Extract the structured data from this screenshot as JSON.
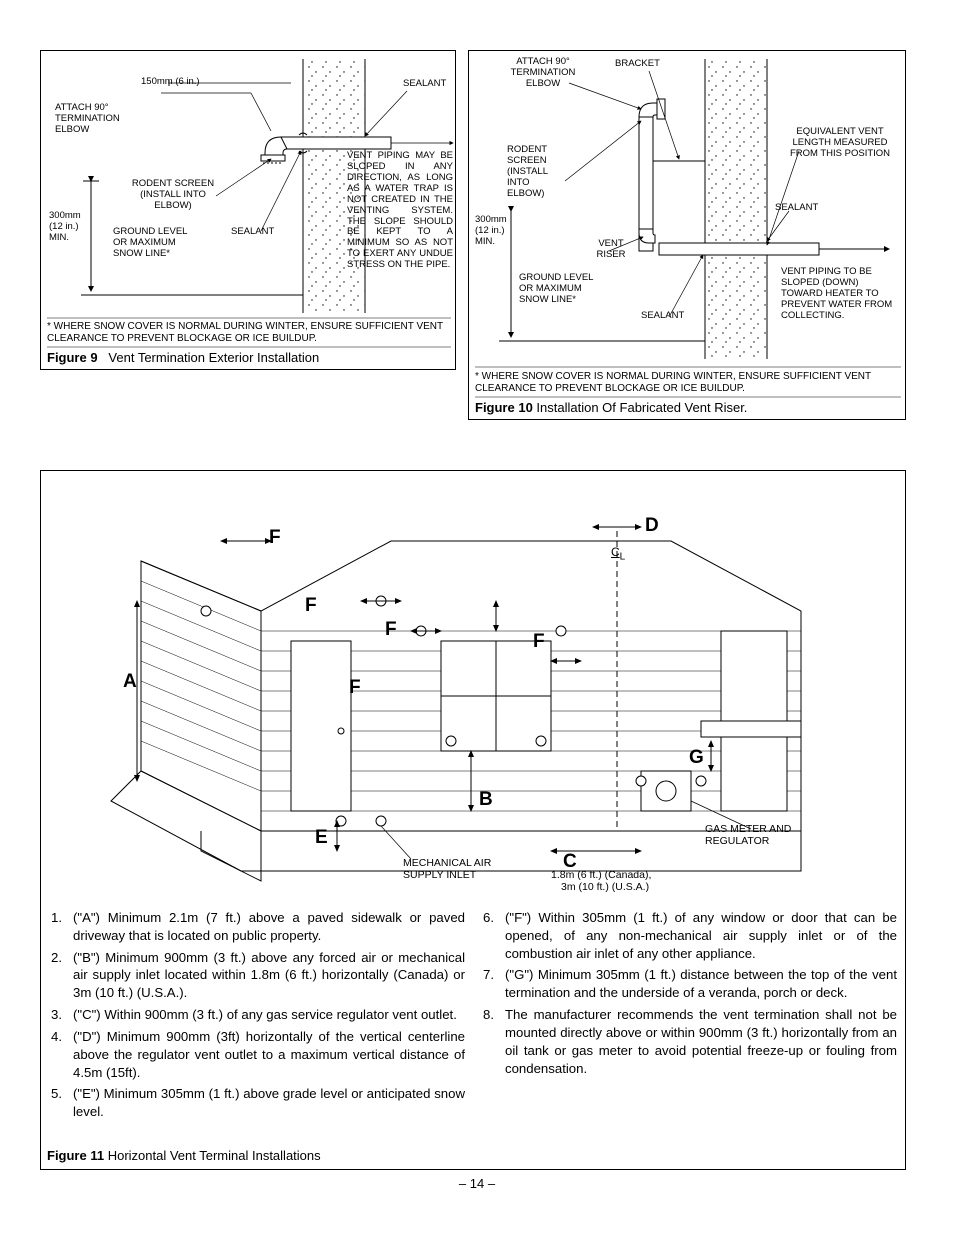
{
  "page_number": "– 14 –",
  "figure9": {
    "caption_bold": "Figure 9",
    "caption_text": "Vent Termination Exterior Installation",
    "snow_note": "* WHERE SNOW COVER IS NORMAL DURING WINTER, ENSURE SUFFICIENT VENT CLEARANCE TO PREVENT BLOCKAGE OR ICE BUILDUP.",
    "labels": {
      "l150mm": "150mm (6 in.)",
      "attach_elbow": "ATTACH 90° TERMINATION ELBOW",
      "rodent": "RODENT SCREEN (INSTALL INTO ELBOW)",
      "l300mm": "300mm (12 in.) MIN.",
      "ground": "GROUND LEVEL OR MAXIMUM SNOW LINE*",
      "sealant_left": "SEALANT",
      "sealant_top": "SEALANT",
      "vent_pipe": "VENT PIPING MAY BE SLOPED IN ANY DIRECTION, AS LONG AS A WATER TRAP IS NOT CREATED IN THE VENTING SYS­TEM. THE SLOPE SHOULD BE KEPT TO A MINIMUM SO AS NOT TO EXERT ANY UNDUE STRESS ON THE PIPE."
    }
  },
  "figure10": {
    "caption_bold": "Figure 10",
    "caption_text": "Installation Of Fabricated Vent Riser.",
    "snow_note": "* WHERE SNOW COVER IS NORMAL DURING WINTER, ENSURE SUFFICIENT VENT CLEARANCE TO PREVENT BLOCKAGE OR ICE BUILDUP.",
    "labels": {
      "attach_elbow": "ATTACH 90° TERMINATION ELBOW",
      "bracket": "BRACKET",
      "rodent": "RODENT SCREEN (INSTALL INTO ELBOW)",
      "equiv": "EQUIVALENT VENT LENGTH MEASURED FROM THIS POSITION",
      "sealant1": "SEALANT",
      "sealant2": "SEALANT",
      "l300mm": "300mm (12 in.) MIN.",
      "vent_riser": "VENT RISER",
      "ground": "GROUND LEVEL OR MAXIMUM SNOW LINE*",
      "slope": "VENT PIPING TO BE SLOPED (DOWN) TOWARD HEATER TO PREVENT WATER FROM COLLECTING."
    }
  },
  "figure11": {
    "caption_bold": "Figure 11",
    "caption_text": "Horizontal Vent Terminal Installations",
    "letters": {
      "A": "A",
      "B": "B",
      "C": "C",
      "D": "D",
      "E": "E",
      "F": "F",
      "G": "G",
      "CL": "C"
    },
    "labels": {
      "mech_air": "MECHANICAL AIR SUPPLY INLET",
      "gas_meter": "GAS METER AND REGULATOR",
      "dist_canada": "1.8m (6 ft.) (Canada),",
      "dist_usa": "3m (10 ft.) (U.S.A.)"
    },
    "notes_left": [
      {
        "n": "1.",
        "t": "(\"A\") Minimum 2.1m (7 ft.) above a paved sidewalk or paved driveway that is located on public property."
      },
      {
        "n": "2.",
        "t": "(\"B\") Minimum 900mm (3 ft.) above any forced air or mechanical air supply inlet located within 1.8m (6 ft.) horizontally (Canada) or 3m (10 ft.) (U.S.A.)."
      },
      {
        "n": "3.",
        "t": "(\"C\") Within 900mm (3 ft.) of any gas service regulator vent outlet."
      },
      {
        "n": "4.",
        "t": "(\"D\") Minimum 900mm (3ft) horizontally of the vertical centerline above the regulator vent outlet to a maximum vertical distance of 4.5m (15ft)."
      },
      {
        "n": "5.",
        "t": "(\"E\") Minimum 305mm (1 ft.) above grade level or antic­ipated snow level."
      }
    ],
    "notes_right": [
      {
        "n": "6.",
        "t": "(\"F\") Within 305mm (1 ft.) of any window or door that can be opened, of any non-mechanical air supply inlet or of the combustion air inlet of any other appliance."
      },
      {
        "n": "7.",
        "t": "(\"G\") Minimum 305mm (1 ft.) distance between the top of the vent termination and the underside of a veranda, porch or deck."
      },
      {
        "n": "8.",
        "t": "The manufacturer recommends the vent termination shall not be mounted directly above or within 900mm (3 ft.) horizontally from an oil tank or gas meter to avoid potential freeze-up or fouling from condensation."
      }
    ]
  }
}
